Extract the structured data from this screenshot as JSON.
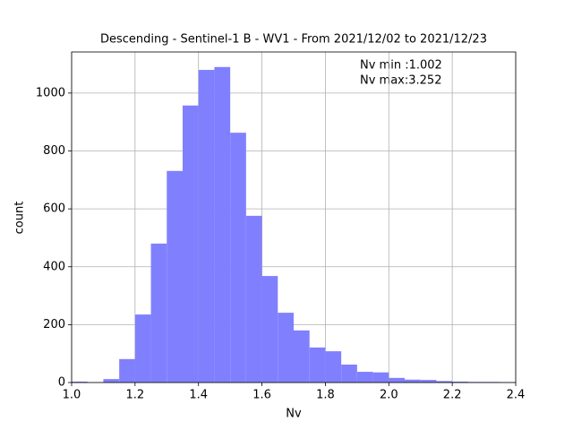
{
  "chart_data": {
    "type": "histogram",
    "title": "Descending - Sentinel-1 B - WV1 - From 2021/12/02 to 2021/12/23",
    "x_label": "Nv",
    "y_label": "count",
    "annotations": [
      "Nv min :1.002",
      "Nv max:3.252"
    ],
    "bins": [
      1.0,
      1.05,
      1.1,
      1.15,
      1.2,
      1.25,
      1.3,
      1.35,
      1.4,
      1.45,
      1.5,
      1.55,
      1.6,
      1.65,
      1.7,
      1.75,
      1.8,
      1.85,
      1.9,
      1.95,
      2.0,
      2.05,
      2.1,
      2.15,
      2.2,
      2.25,
      2.3,
      2.35,
      2.4
    ],
    "counts": [
      3,
      0,
      12,
      81,
      235,
      480,
      731,
      957,
      1080,
      1090,
      863,
      576,
      368,
      241,
      180,
      121,
      108,
      62,
      37,
      35,
      16,
      10,
      9,
      5,
      3,
      2,
      2,
      1
    ],
    "color": "#8080ff",
    "xlim": [
      1.0,
      2.4
    ],
    "xticks": [
      {
        "value": 1.0,
        "label": "1.0"
      },
      {
        "value": 1.2,
        "label": "1.2"
      },
      {
        "value": 1.4,
        "label": "1.4"
      },
      {
        "value": 1.6,
        "label": "1.6"
      },
      {
        "value": 1.8,
        "label": "1.8"
      },
      {
        "value": 2.0,
        "label": "2.0"
      },
      {
        "value": 2.2,
        "label": "2.2"
      },
      {
        "value": 2.4,
        "label": "2.4"
      }
    ],
    "ylim": [
      0,
      1142
    ],
    "yticks": [
      0,
      200,
      400,
      600,
      800,
      1000
    ],
    "grid": true
  }
}
